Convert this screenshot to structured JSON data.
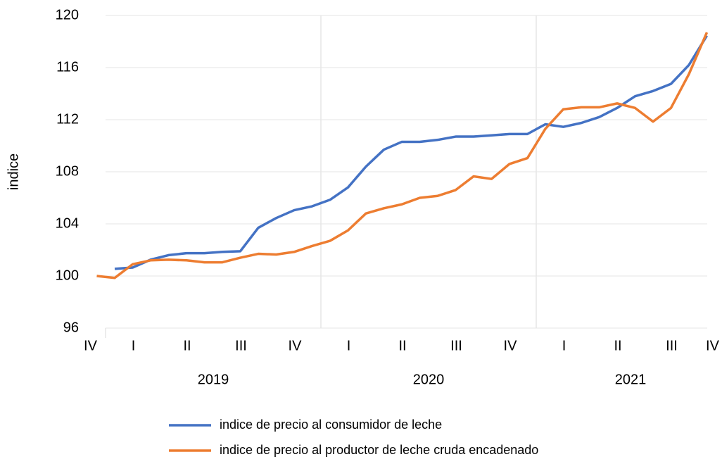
{
  "chart_data": {
    "type": "line",
    "y_label": "indice",
    "categories": [
      "IV",
      null,
      "I",
      null,
      null,
      "II",
      null,
      null,
      "III",
      null,
      null,
      "IV",
      null,
      null,
      "I",
      null,
      null,
      "II",
      null,
      null,
      "III",
      null,
      null,
      "IV",
      null,
      null,
      "I",
      null,
      null,
      "II",
      null,
      null,
      "III",
      null,
      "IV"
    ],
    "years": [
      "2019",
      "2020",
      "2021"
    ],
    "ylim": [
      96,
      120
    ],
    "yticks": [
      96,
      100,
      104,
      108,
      112,
      116,
      120
    ],
    "grid": true,
    "series": [
      {
        "name": "indice de precio al consumidor de leche",
        "color": "#4472c4",
        "values": [
          null,
          100.55,
          100.65,
          101.25,
          101.6,
          101.75,
          101.75,
          101.85,
          101.9,
          103.7,
          104.45,
          105.05,
          105.35,
          105.85,
          106.8,
          108.4,
          109.7,
          110.3,
          110.3,
          110.45,
          110.7,
          110.7,
          110.8,
          110.9,
          110.9,
          111.65,
          111.45,
          111.75,
          112.2,
          112.9,
          113.8,
          114.2,
          114.75,
          116.2,
          118.45
        ]
      },
      {
        "name": "indice de precio al productor de leche cruda encadenado",
        "color": "#ed7d31",
        "values": [
          100.0,
          99.85,
          100.9,
          101.2,
          101.25,
          101.2,
          101.05,
          101.05,
          101.4,
          101.7,
          101.65,
          101.85,
          102.3,
          102.7,
          103.5,
          104.8,
          105.2,
          105.5,
          106.0,
          106.15,
          106.6,
          107.65,
          107.45,
          108.6,
          109.05,
          111.3,
          112.8,
          112.95,
          112.95,
          113.25,
          112.9,
          111.85,
          112.9,
          115.5,
          118.7
        ]
      }
    ]
  }
}
